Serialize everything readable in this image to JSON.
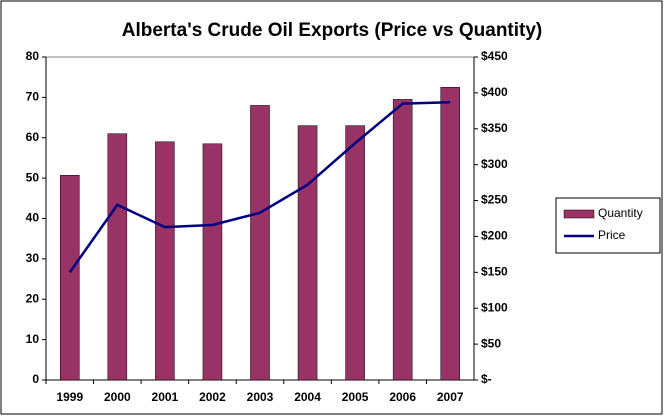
{
  "chart_data": {
    "type": "bar-line",
    "title": "Alberta's Crude Oil Exports (Price vs Quantity)",
    "categories": [
      "1999",
      "2000",
      "2001",
      "2002",
      "2003",
      "2004",
      "2005",
      "2006",
      "2007"
    ],
    "series": [
      {
        "name": "Quantity",
        "type": "bar",
        "color": "#993366",
        "values": [
          50.7,
          61,
          59,
          58.5,
          68,
          63,
          63,
          69.5,
          72.5
        ]
      },
      {
        "name": "Price",
        "type": "line",
        "color": "#000080",
        "axis": "y2",
        "values": [
          150,
          244,
          213,
          216,
          233,
          272,
          330,
          385,
          387
        ]
      }
    ],
    "ylim": [
      0,
      80
    ],
    "yticks": [
      0,
      10,
      20,
      30,
      40,
      50,
      60,
      70,
      80
    ],
    "y2lim": [
      0,
      450
    ],
    "y2ticks": [
      {
        "value": 0,
        "label": "$-"
      },
      {
        "value": 50,
        "label": "$50"
      },
      {
        "value": 100,
        "label": "$100"
      },
      {
        "value": 150,
        "label": "$150"
      },
      {
        "value": 200,
        "label": "$200"
      },
      {
        "value": 250,
        "label": "$250"
      },
      {
        "value": 300,
        "label": "$300"
      },
      {
        "value": 350,
        "label": "$350"
      },
      {
        "value": 400,
        "label": "$400"
      },
      {
        "value": 450,
        "label": "$450"
      }
    ],
    "legend": "right",
    "grid": false
  }
}
